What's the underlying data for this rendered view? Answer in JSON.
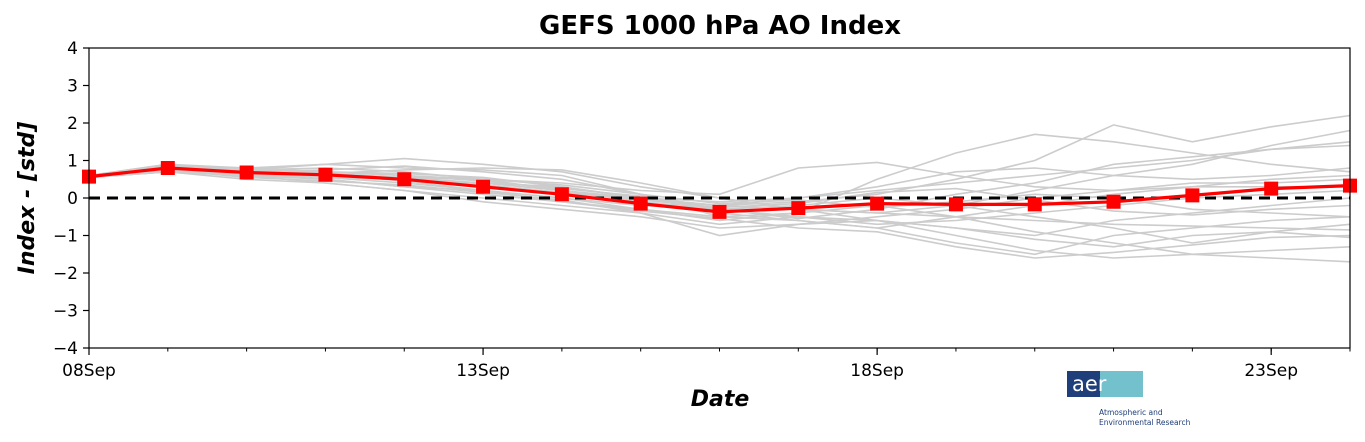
{
  "chart_data": {
    "type": "line",
    "title": "GEFS 1000 hPa AO Index",
    "xlabel": "Date",
    "ylabel": "Index - [std]",
    "x": [
      "2023-09-08",
      "2023-09-09",
      "2023-09-10",
      "2023-09-11",
      "2023-09-12",
      "2023-09-13",
      "2023-09-14",
      "2023-09-15",
      "2023-09-16",
      "2023-09-17",
      "2023-09-18",
      "2023-09-19",
      "2023-09-20",
      "2023-09-21",
      "2023-09-22",
      "2023-09-23",
      "2023-09-24"
    ],
    "xlim": [
      "2023-09-08",
      "2023-09-24"
    ],
    "ylim": [
      -4,
      4
    ],
    "x_ticks": [
      {
        "date": "2023-09-08",
        "label": "08Sep"
      },
      {
        "date": "2023-09-13",
        "label": "13Sep"
      },
      {
        "date": "2023-09-18",
        "label": "18Sep"
      },
      {
        "date": "2023-09-23",
        "label": "23Sep"
      }
    ],
    "y_ticks": [
      {
        "value": 4,
        "label": "4"
      },
      {
        "value": 3,
        "label": "3"
      },
      {
        "value": 2,
        "label": "2"
      },
      {
        "value": 1,
        "label": "1"
      },
      {
        "value": 0,
        "label": "0"
      },
      {
        "value": -1,
        "label": "−1"
      },
      {
        "value": -2,
        "label": "−2"
      },
      {
        "value": -3,
        "label": "−3"
      },
      {
        "value": -4,
        "label": "−4"
      }
    ],
    "grid": false,
    "mean": {
      "color": "#ff0000",
      "values": [
        0.57,
        0.8,
        0.68,
        0.62,
        0.5,
        0.3,
        0.1,
        -0.15,
        -0.37,
        -0.27,
        -0.15,
        -0.17,
        -0.17,
        -0.1,
        0.07,
        0.25,
        0.33
      ]
    },
    "members": {
      "color": "#cccccc",
      "series": [
        {
          "values": [
            0.6,
            0.9,
            0.7,
            0.7,
            0.65,
            0.55,
            0.3,
            0.0,
            -0.2,
            -0.3,
            -0.4,
            -0.5,
            -0.6,
            -0.7,
            -0.75,
            -0.8,
            -0.85
          ]
        },
        {
          "values": [
            0.6,
            0.85,
            0.75,
            0.9,
            0.8,
            0.75,
            0.6,
            0.1,
            -0.5,
            -0.4,
            0.5,
            1.2,
            1.7,
            1.5,
            1.2,
            0.9,
            0.7
          ]
        },
        {
          "values": [
            0.55,
            0.7,
            0.5,
            0.4,
            0.2,
            0.0,
            -0.2,
            -0.4,
            -0.7,
            -0.5,
            -0.6,
            -1.0,
            -1.4,
            -1.6,
            -1.5,
            -1.4,
            -1.3
          ]
        },
        {
          "values": [
            0.6,
            0.75,
            0.65,
            0.55,
            0.5,
            0.4,
            0.2,
            0.0,
            -0.1,
            0.0,
            0.2,
            0.4,
            0.6,
            0.8,
            1.0,
            1.3,
            1.5
          ]
        },
        {
          "values": [
            0.55,
            0.8,
            0.7,
            0.65,
            0.45,
            0.2,
            0.0,
            -0.2,
            -0.3,
            -0.5,
            -0.7,
            -0.6,
            -0.4,
            -0.2,
            0.0,
            0.1,
            0.2
          ]
        },
        {
          "values": [
            0.6,
            0.85,
            0.8,
            0.7,
            0.6,
            0.5,
            0.4,
            0.2,
            0.1,
            0.8,
            0.95,
            0.6,
            0.3,
            0.2,
            0.3,
            0.5,
            0.6
          ]
        },
        {
          "values": [
            0.58,
            0.8,
            0.6,
            0.5,
            0.3,
            0.1,
            -0.1,
            -0.3,
            -0.5,
            -0.6,
            -0.8,
            -1.2,
            -1.5,
            -1.0,
            -0.8,
            -0.6,
            -0.5
          ]
        },
        {
          "values": [
            0.55,
            0.75,
            0.7,
            0.6,
            0.5,
            0.4,
            0.3,
            0.0,
            -0.2,
            -0.1,
            0.1,
            0.5,
            1.0,
            1.95,
            1.5,
            1.9,
            2.2
          ]
        },
        {
          "values": [
            0.6,
            0.8,
            0.75,
            0.8,
            0.7,
            0.5,
            0.2,
            -0.1,
            -0.3,
            -0.2,
            0.0,
            -0.2,
            -0.5,
            -0.8,
            -1.2,
            -0.9,
            -0.7
          ]
        },
        {
          "values": [
            0.57,
            0.7,
            0.6,
            0.4,
            0.2,
            -0.1,
            -0.3,
            -0.5,
            -0.8,
            -0.7,
            -0.5,
            -0.3,
            0.0,
            0.2,
            0.4,
            0.4,
            0.5
          ]
        },
        {
          "values": [
            0.6,
            0.9,
            0.8,
            0.9,
            1.05,
            0.9,
            0.7,
            0.3,
            0.0,
            -0.3,
            -0.4,
            -0.2,
            0.2,
            0.6,
            0.9,
            1.4,
            1.8
          ]
        },
        {
          "values": [
            0.55,
            0.7,
            0.65,
            0.5,
            0.3,
            0.2,
            0.0,
            -0.3,
            -0.6,
            -0.4,
            -0.2,
            -0.5,
            -0.9,
            -1.2,
            -1.5,
            -1.6,
            -1.7
          ]
        },
        {
          "values": [
            0.6,
            0.85,
            0.7,
            0.75,
            0.85,
            0.7,
            0.5,
            0.1,
            -0.4,
            -0.6,
            -0.8,
            -0.5,
            -0.2,
            0.1,
            0.3,
            0.3,
            0.3
          ]
        },
        {
          "values": [
            0.58,
            0.75,
            0.55,
            0.45,
            0.35,
            0.15,
            -0.05,
            -0.4,
            -1.0,
            -0.7,
            -0.6,
            -0.8,
            -1.1,
            -1.3,
            -1.0,
            -0.9,
            -1.05
          ]
        },
        {
          "values": [
            0.6,
            0.8,
            0.7,
            0.6,
            0.5,
            0.35,
            0.15,
            -0.05,
            -0.2,
            0.0,
            0.3,
            0.7,
            0.8,
            0.6,
            0.5,
            0.6,
            0.8
          ]
        },
        {
          "values": [
            0.55,
            0.7,
            0.6,
            0.65,
            0.75,
            0.8,
            0.75,
            0.4,
            0.0,
            -0.3,
            -0.6,
            -0.8,
            -1.0,
            -0.6,
            -0.4,
            -0.2,
            0.0
          ]
        },
        {
          "values": [
            0.6,
            0.85,
            0.75,
            0.7,
            0.6,
            0.45,
            0.25,
            0.05,
            -0.3,
            -0.55,
            -0.3,
            0.1,
            0.4,
            0.9,
            1.1,
            1.3,
            1.4
          ]
        },
        {
          "values": [
            0.58,
            0.8,
            0.7,
            0.55,
            0.4,
            0.2,
            -0.1,
            -0.35,
            -0.55,
            -0.8,
            -0.9,
            -1.3,
            -1.6,
            -1.45,
            -1.25,
            -1.05,
            -1.0
          ]
        },
        {
          "values": [
            0.6,
            0.75,
            0.65,
            0.6,
            0.55,
            0.5,
            0.35,
            0.1,
            -0.15,
            -0.05,
            -0.25,
            -0.1,
            0.1,
            0.0,
            -0.3,
            -0.4,
            -0.5
          ]
        },
        {
          "values": [
            0.57,
            0.8,
            0.7,
            0.65,
            0.55,
            0.4,
            0.2,
            -0.05,
            -0.25,
            -0.15,
            0.15,
            0.25,
            -0.05,
            -0.35,
            -0.45,
            -0.3,
            -0.2
          ]
        }
      ]
    }
  },
  "logo": {
    "word": "aer",
    "line1": "Atmospheric and",
    "line2": "Environmental Research",
    "color": "#1f3f7a",
    "accent": "#7ccfd6"
  }
}
